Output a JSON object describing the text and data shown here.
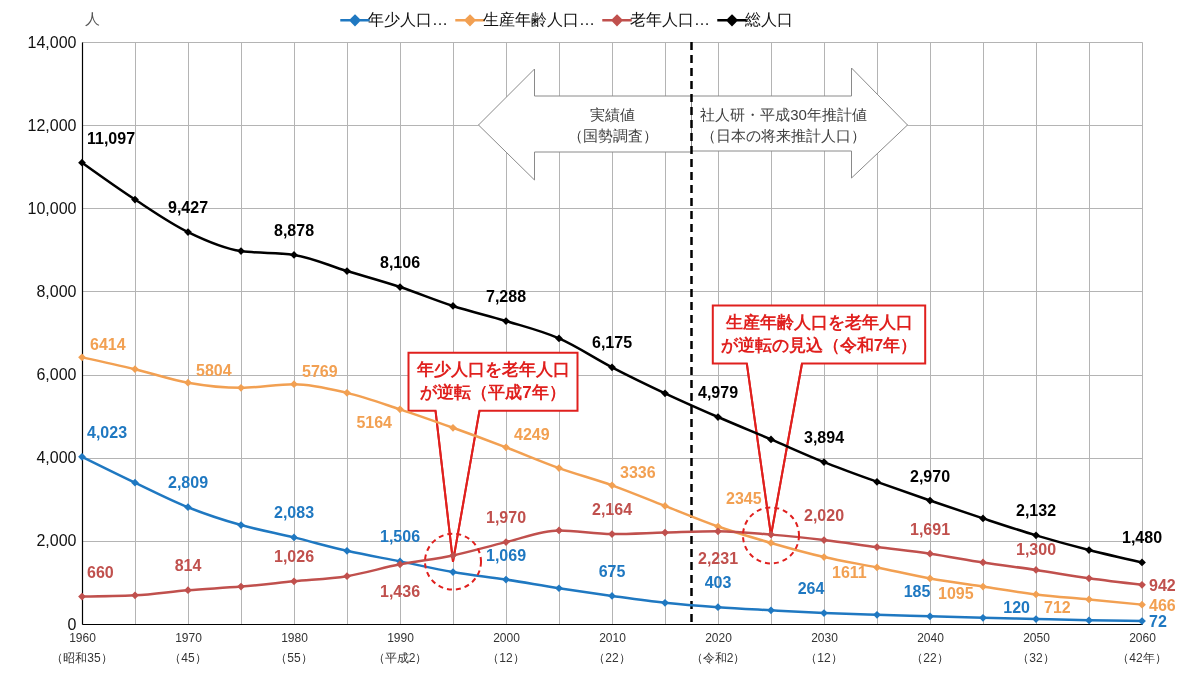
{
  "chart_data": {
    "type": "line",
    "ylabel": "人",
    "legend": "top",
    "marker": "diamond",
    "line_style": "solid",
    "grid": true,
    "x": [
      1960,
      1965,
      1970,
      1975,
      1980,
      1985,
      1990,
      1995,
      2000,
      2005,
      2010,
      2015,
      2020,
      2025,
      2030,
      2035,
      2040,
      2045,
      2050,
      2055,
      2060
    ],
    "xlim": [
      1960,
      2060
    ],
    "xticks": [
      1960,
      {
        "value": 1965,
        "label": null
      },
      1970,
      {
        "value": 1975,
        "label": null
      },
      1980,
      {
        "value": 1985,
        "label": null
      },
      1990,
      {
        "value": 1995,
        "label": null
      },
      2000,
      {
        "value": 2005,
        "label": null
      },
      2010,
      {
        "value": 2015,
        "label": null
      },
      2020,
      {
        "value": 2025,
        "label": null
      },
      2030,
      {
        "value": 2035,
        "label": null
      },
      2040,
      {
        "value": 2045,
        "label": null
      },
      2050,
      {
        "value": 2055,
        "label": null
      },
      2060
    ],
    "ylim": [
      0,
      14000
    ],
    "yticks": [
      0,
      {
        "value": 2000,
        "label": "2,000"
      },
      {
        "value": 4000,
        "label": "4,000"
      },
      {
        "value": 6000,
        "label": "6,000"
      },
      {
        "value": 8000,
        "label": "8,000"
      },
      {
        "value": 10000,
        "label": "10,000"
      },
      {
        "value": 12000,
        "label": "12,000"
      },
      {
        "value": 14000,
        "label": "14,000"
      }
    ],
    "series": [
      {
        "name": "年少人口…",
        "color": "#1f78c1",
        "values": [
          4023,
          3400,
          2809,
          2380,
          2083,
          1760,
          1506,
          1250,
          1069,
          860,
          675,
          510,
          403,
          330,
          264,
          220,
          185,
          150,
          120,
          90,
          72
        ],
        "value_labels": [
          "4,023",
          null,
          "2,809",
          null,
          "2,083",
          null,
          "1,506",
          null,
          "1,069",
          null,
          "675",
          null,
          "403",
          null,
          "264",
          null,
          "185",
          null,
          "120",
          null,
          "72"
        ]
      },
      {
        "name": "生産年齢人口…",
        "color": "#f2a052",
        "values": [
          6414,
          6130,
          5804,
          5680,
          5769,
          5560,
          5164,
          4720,
          4249,
          3750,
          3336,
          2840,
          2345,
          1950,
          1611,
          1360,
          1095,
          900,
          712,
          590,
          466
        ],
        "value_labels": [
          "6414",
          null,
          "5804",
          null,
          "5769",
          null,
          "5164",
          null,
          "4249",
          null,
          "3336",
          null,
          "2345",
          null,
          "1611",
          null,
          "1095",
          null,
          "712",
          null,
          "466"
        ]
      },
      {
        "name": "老年人口…",
        "color": "#c0504d",
        "values": [
          660,
          690,
          814,
          900,
          1026,
          1150,
          1436,
          1650,
          1970,
          2250,
          2164,
          2200,
          2231,
          2150,
          2020,
          1850,
          1691,
          1480,
          1300,
          1100,
          942
        ],
        "value_labels": [
          "660",
          null,
          "814",
          null,
          "1,026",
          null,
          "1,436",
          null,
          "1,970",
          null,
          "2,164",
          null,
          "2,231",
          null,
          "2,020",
          null,
          "1,691",
          null,
          "1,300",
          null,
          "942"
        ]
      },
      {
        "name": "総人口",
        "color": "#000000",
        "values": [
          11097,
          10210,
          9427,
          8970,
          8878,
          8490,
          8106,
          7650,
          7288,
          6870,
          6175,
          5550,
          4979,
          4440,
          3894,
          3420,
          2970,
          2540,
          2132,
          1780,
          1480
        ],
        "value_labels": [
          "11,097",
          null,
          "9,427",
          null,
          "8,878",
          null,
          "8,106",
          null,
          "7,288",
          null,
          "6,175",
          null,
          "4,979",
          null,
          "3,894",
          null,
          "2,970",
          null,
          "2,132",
          null,
          "1,480"
        ]
      }
    ],
    "ref_lines": [
      {
        "axis": "x",
        "value": 2017.5,
        "color": "#000000",
        "line_style": "dashed"
      }
    ],
    "annotations": [
      "実績値（国勢調査）",
      "社人研・平成30年推計値（日本の将来推計人口）",
      {
        "text": "年少人口を老年人口が逆転（平成7年）",
        "x": 1995,
        "y": 1500
      },
      {
        "text": "生産年齢人口を老年人口が逆転の見込（令和7年）",
        "x": 2025,
        "y": 2130
      },
      "（昭和35）",
      "（45）",
      "（55）",
      "（平成2）",
      "（12）",
      "（22）",
      "（令和2）",
      "（12）",
      "（22）",
      "（32）",
      "（42年）"
    ]
  }
}
